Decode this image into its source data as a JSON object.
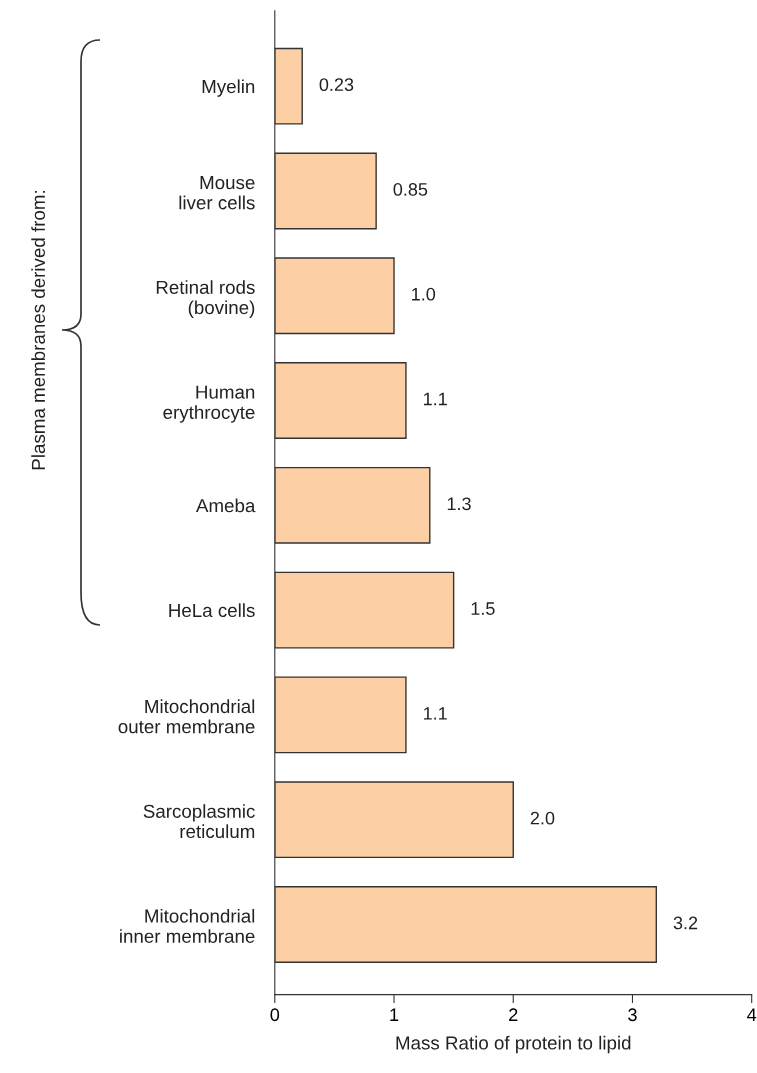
{
  "chart_data": {
    "type": "bar",
    "orientation": "horizontal",
    "xlabel": "Mass Ratio of protein to lipid",
    "categories": [
      "Myelin",
      "Mouse\nliver cells",
      "Retinal rods\n(bovine)",
      "Human\nerythrocyte",
      "Ameba",
      "HeLa cells",
      "Mitochondrial\nouter membrane",
      "Sarcoplasmic\nreticulum",
      "Mitochondrial\ninner membrane"
    ],
    "values": [
      0.23,
      0.85,
      1.0,
      1.1,
      1.3,
      1.5,
      1.1,
      2.0,
      3.2
    ],
    "value_labels": [
      "0.23",
      "0.85",
      "1.0",
      "1.1",
      "1.3",
      "1.5",
      "1.1",
      "2.0",
      "3.2"
    ],
    "color": "#fccfa5",
    "xlim": [
      0,
      4
    ],
    "xticks": [
      0,
      1,
      2,
      3,
      4
    ],
    "grid": false,
    "legend": false,
    "annotations": [
      "Plasma membranes derived from:"
    ]
  }
}
